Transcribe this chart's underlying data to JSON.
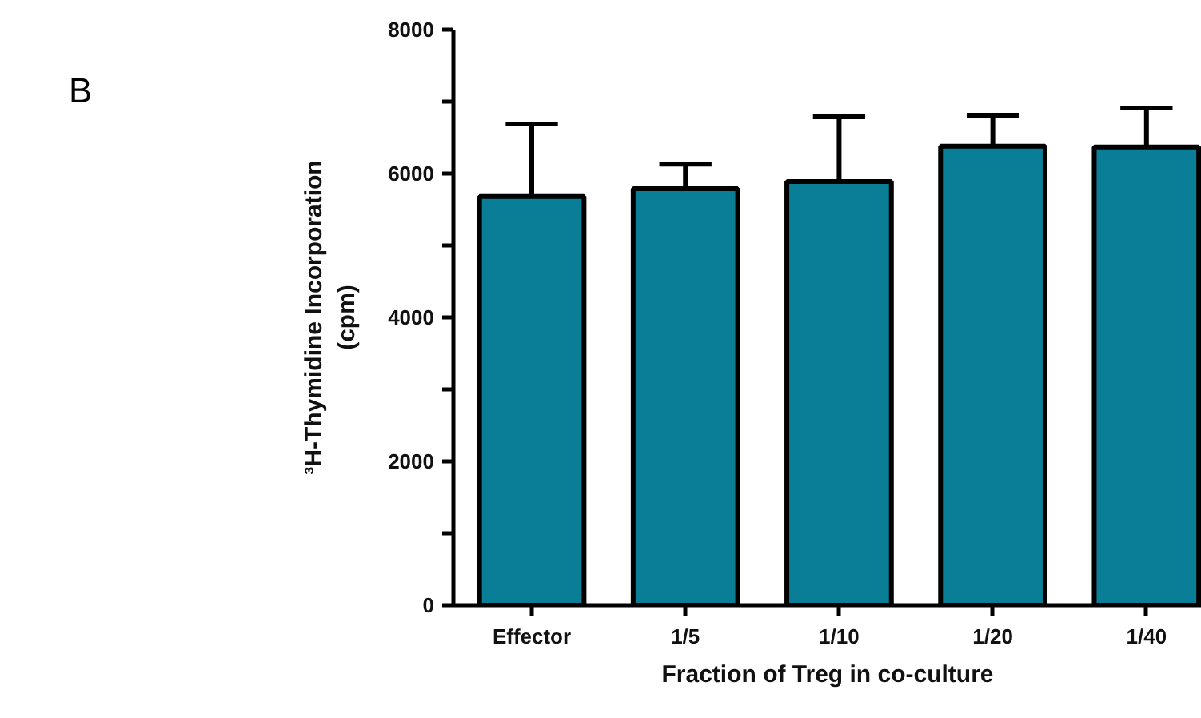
{
  "chart_data": {
    "type": "bar",
    "categories": [
      "Effector",
      "1/5",
      "1/10",
      "1/20",
      "1/40"
    ],
    "values": [
      5680,
      5790,
      5890,
      6380,
      6370
    ],
    "errors": [
      [
        5680,
        6690
      ],
      [
        5790,
        6130
      ],
      [
        5890,
        6790
      ],
      [
        6380,
        6810
      ],
      [
        6370,
        6910
      ]
    ],
    "color": "#0a7e96",
    "xlabel": "Fraction of Treg in co-culture",
    "ylabel": "³H-Thymidine Incorporation\n(cpm)",
    "ylim": [
      0,
      8000
    ],
    "yticks": [
      0,
      {
        "value": 1000,
        "label": null
      },
      2000,
      {
        "value": 3000,
        "label": null
      },
      4000,
      {
        "value": 5000,
        "label": null
      },
      6000,
      {
        "value": 7000,
        "label": null
      },
      8000
    ],
    "annotations": [
      "B"
    ]
  }
}
